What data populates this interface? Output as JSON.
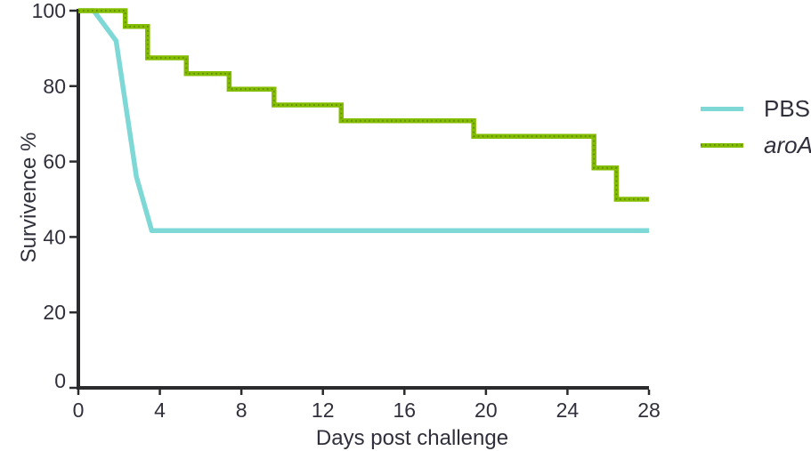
{
  "chart_data": {
    "type": "line",
    "subtype": "kaplan-meier-survival",
    "title": "",
    "xlabel": "Days post challenge",
    "ylabel": "Survivence %",
    "xlim": [
      0,
      28
    ],
    "ylim": [
      0,
      100
    ],
    "xticks": [
      "0",
      "4",
      "8",
      "12",
      "16",
      "20",
      "24",
      "28"
    ],
    "yticks": [
      "0",
      "20",
      "40",
      "60",
      "80",
      "100"
    ],
    "grid": false,
    "legend_position": "right",
    "axis_color": "#2b2b2e",
    "text_color": "#30303c",
    "series": [
      {
        "name": "PBS",
        "color": "#7ed8d5",
        "style": "linear",
        "italic": false,
        "points": [
          [
            0,
            100
          ],
          [
            0.75,
            100
          ],
          [
            1.85,
            92
          ],
          [
            2.85,
            56
          ],
          [
            3.6,
            41.7
          ],
          [
            28,
            41.7
          ]
        ]
      },
      {
        "name": "aroA",
        "color": "#84bd00",
        "dot_color": "#5d8a00",
        "style": "step-after",
        "italic": true,
        "points": [
          [
            0,
            100
          ],
          [
            2.3,
            95.8
          ],
          [
            3.4,
            87.5
          ],
          [
            5.3,
            83.3
          ],
          [
            7.4,
            79.2
          ],
          [
            9.6,
            75
          ],
          [
            12.9,
            70.8
          ],
          [
            19.4,
            66.7
          ],
          [
            25.3,
            58.3
          ],
          [
            26.4,
            50
          ],
          [
            28,
            50
          ]
        ]
      }
    ]
  }
}
